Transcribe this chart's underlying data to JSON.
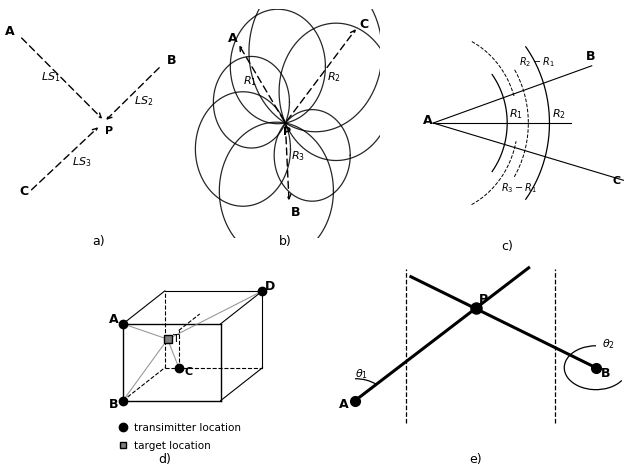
{
  "fig_width": 6.34,
  "fig_height": 4.77,
  "bg_color": "#ffffff",
  "label_a": "a)",
  "label_b": "b)",
  "label_c": "c)",
  "label_d": "d)",
  "label_e": "e)"
}
